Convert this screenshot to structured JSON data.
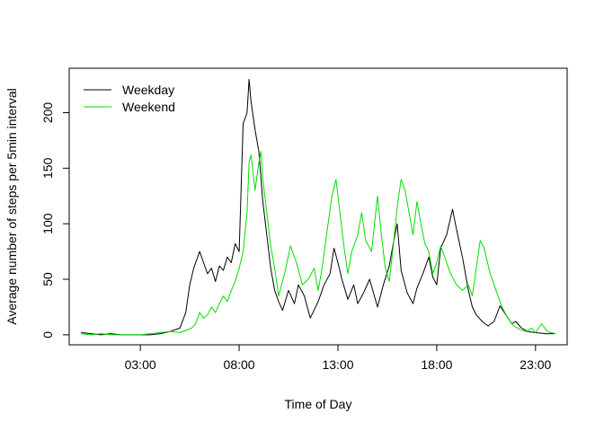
{
  "chart_data": {
    "type": "line",
    "title": "",
    "xlabel": "Time of Day",
    "ylabel": "Average number of steps per 5min interval",
    "x_unit": "hours",
    "xlim": [
      -0.6,
      24.6
    ],
    "ylim": [
      -9,
      240
    ],
    "x_ticks": [
      {
        "value": 3,
        "label": "03:00"
      },
      {
        "value": 8,
        "label": "08:00"
      },
      {
        "value": 13,
        "label": "13:00"
      },
      {
        "value": 18,
        "label": "18:00"
      },
      {
        "value": 23,
        "label": "23:00"
      }
    ],
    "y_ticks": [
      {
        "value": 0,
        "label": "0"
      },
      {
        "value": 50,
        "label": "50"
      },
      {
        "value": 100,
        "label": "100"
      },
      {
        "value": 150,
        "label": "150"
      },
      {
        "value": 200,
        "label": "200"
      }
    ],
    "grid": false,
    "legend_position": "top-left",
    "series": [
      {
        "name": "Weekday",
        "color": "#000000",
        "points": [
          [
            0.0,
            2
          ],
          [
            0.5,
            1
          ],
          [
            1.0,
            0
          ],
          [
            1.5,
            1
          ],
          [
            2.0,
            0
          ],
          [
            2.5,
            0
          ],
          [
            3.0,
            0
          ],
          [
            3.5,
            0
          ],
          [
            4.0,
            1
          ],
          [
            4.5,
            3
          ],
          [
            5.0,
            6
          ],
          [
            5.3,
            20
          ],
          [
            5.5,
            45
          ],
          [
            5.7,
            60
          ],
          [
            6.0,
            75
          ],
          [
            6.2,
            65
          ],
          [
            6.4,
            55
          ],
          [
            6.6,
            60
          ],
          [
            6.8,
            48
          ],
          [
            7.0,
            62
          ],
          [
            7.2,
            58
          ],
          [
            7.4,
            70
          ],
          [
            7.6,
            65
          ],
          [
            7.8,
            82
          ],
          [
            8.0,
            75
          ],
          [
            8.2,
            190
          ],
          [
            8.4,
            200
          ],
          [
            8.5,
            230
          ],
          [
            8.6,
            210
          ],
          [
            8.8,
            185
          ],
          [
            9.0,
            165
          ],
          [
            9.2,
            120
          ],
          [
            9.4,
            90
          ],
          [
            9.6,
            60
          ],
          [
            9.8,
            40
          ],
          [
            10.0,
            30
          ],
          [
            10.2,
            22
          ],
          [
            10.5,
            40
          ],
          [
            10.8,
            28
          ],
          [
            11.0,
            45
          ],
          [
            11.3,
            35
          ],
          [
            11.6,
            15
          ],
          [
            12.0,
            30
          ],
          [
            12.3,
            45
          ],
          [
            12.6,
            55
          ],
          [
            12.8,
            78
          ],
          [
            13.0,
            65
          ],
          [
            13.2,
            50
          ],
          [
            13.5,
            32
          ],
          [
            13.8,
            45
          ],
          [
            14.0,
            28
          ],
          [
            14.3,
            38
          ],
          [
            14.6,
            50
          ],
          [
            15.0,
            25
          ],
          [
            15.3,
            45
          ],
          [
            15.6,
            62
          ],
          [
            15.8,
            82
          ],
          [
            16.0,
            100
          ],
          [
            16.2,
            58
          ],
          [
            16.5,
            38
          ],
          [
            16.8,
            28
          ],
          [
            17.0,
            42
          ],
          [
            17.3,
            55
          ],
          [
            17.6,
            70
          ],
          [
            17.8,
            52
          ],
          [
            18.0,
            45
          ],
          [
            18.2,
            78
          ],
          [
            18.5,
            90
          ],
          [
            18.8,
            113
          ],
          [
            19.0,
            95
          ],
          [
            19.3,
            70
          ],
          [
            19.6,
            40
          ],
          [
            19.8,
            25
          ],
          [
            20.0,
            18
          ],
          [
            20.3,
            12
          ],
          [
            20.6,
            8
          ],
          [
            20.9,
            12
          ],
          [
            21.2,
            26
          ],
          [
            21.5,
            18
          ],
          [
            21.8,
            10
          ],
          [
            22.0,
            12
          ],
          [
            22.3,
            6
          ],
          [
            22.6,
            3
          ],
          [
            23.0,
            2
          ],
          [
            23.5,
            1
          ],
          [
            24.0,
            1
          ]
        ]
      },
      {
        "name": "Weekend",
        "color": "#00e000",
        "points": [
          [
            0.0,
            1
          ],
          [
            0.5,
            0
          ],
          [
            1.0,
            1
          ],
          [
            1.5,
            0
          ],
          [
            2.0,
            0
          ],
          [
            2.5,
            0
          ],
          [
            3.0,
            0
          ],
          [
            3.5,
            1
          ],
          [
            4.0,
            2
          ],
          [
            4.5,
            3
          ],
          [
            5.0,
            2
          ],
          [
            5.3,
            4
          ],
          [
            5.6,
            6
          ],
          [
            5.8,
            10
          ],
          [
            6.0,
            20
          ],
          [
            6.2,
            15
          ],
          [
            6.4,
            18
          ],
          [
            6.6,
            25
          ],
          [
            6.8,
            20
          ],
          [
            7.0,
            28
          ],
          [
            7.2,
            35
          ],
          [
            7.4,
            30
          ],
          [
            7.6,
            40
          ],
          [
            7.8,
            48
          ],
          [
            8.0,
            60
          ],
          [
            8.2,
            75
          ],
          [
            8.4,
            110
          ],
          [
            8.5,
            155
          ],
          [
            8.6,
            162
          ],
          [
            8.8,
            130
          ],
          [
            9.0,
            155
          ],
          [
            9.1,
            165
          ],
          [
            9.2,
            140
          ],
          [
            9.4,
            110
          ],
          [
            9.6,
            80
          ],
          [
            9.8,
            60
          ],
          [
            10.0,
            35
          ],
          [
            10.3,
            55
          ],
          [
            10.6,
            80
          ],
          [
            10.9,
            65
          ],
          [
            11.2,
            45
          ],
          [
            11.5,
            50
          ],
          [
            11.8,
            60
          ],
          [
            12.0,
            40
          ],
          [
            12.2,
            60
          ],
          [
            12.5,
            100
          ],
          [
            12.7,
            125
          ],
          [
            12.9,
            140
          ],
          [
            13.1,
            110
          ],
          [
            13.3,
            80
          ],
          [
            13.5,
            55
          ],
          [
            13.7,
            75
          ],
          [
            14.0,
            90
          ],
          [
            14.2,
            110
          ],
          [
            14.4,
            85
          ],
          [
            14.7,
            75
          ],
          [
            15.0,
            125
          ],
          [
            15.2,
            90
          ],
          [
            15.4,
            60
          ],
          [
            15.6,
            48
          ],
          [
            15.8,
            80
          ],
          [
            16.0,
            115
          ],
          [
            16.2,
            140
          ],
          [
            16.4,
            130
          ],
          [
            16.6,
            110
          ],
          [
            16.8,
            90
          ],
          [
            17.0,
            120
          ],
          [
            17.2,
            100
          ],
          [
            17.4,
            82
          ],
          [
            17.6,
            75
          ],
          [
            17.8,
            55
          ],
          [
            18.0,
            65
          ],
          [
            18.2,
            80
          ],
          [
            18.5,
            65
          ],
          [
            18.7,
            55
          ],
          [
            19.0,
            45
          ],
          [
            19.3,
            40
          ],
          [
            19.6,
            45
          ],
          [
            19.8,
            35
          ],
          [
            20.0,
            60
          ],
          [
            20.2,
            85
          ],
          [
            20.4,
            78
          ],
          [
            20.7,
            55
          ],
          [
            21.0,
            40
          ],
          [
            21.3,
            25
          ],
          [
            21.6,
            15
          ],
          [
            21.9,
            8
          ],
          [
            22.2,
            5
          ],
          [
            22.5,
            3
          ],
          [
            22.8,
            6
          ],
          [
            23.0,
            2
          ],
          [
            23.3,
            10
          ],
          [
            23.6,
            3
          ],
          [
            24.0,
            1
          ]
        ]
      }
    ]
  }
}
